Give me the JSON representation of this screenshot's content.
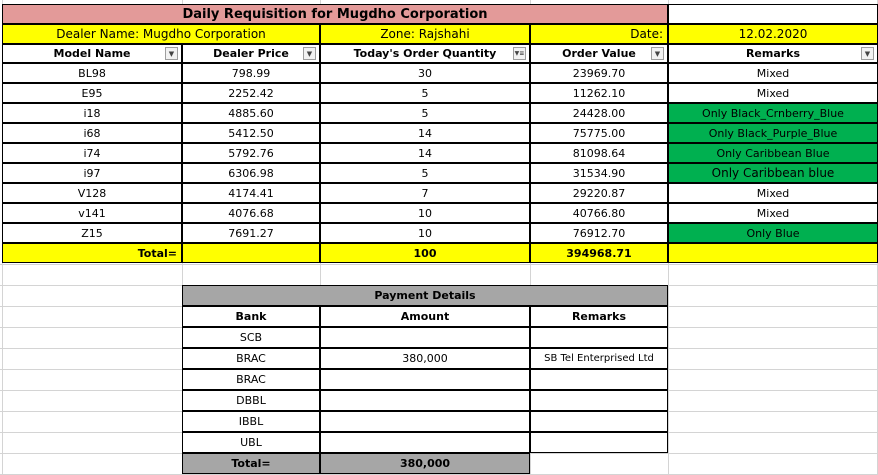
{
  "sheet": {
    "title": "Daily Requisition for Mugdho Corporation",
    "dealer_label": "Dealer Name:  Mugdho Corporation",
    "zone_label": "Zone: Rajshahi",
    "date_label": "Date:",
    "date_value": "12.02.2020"
  },
  "columns": [
    "Model Name",
    "Dealer Price",
    "Today's Order Quantity",
    "Order Value",
    "Remarks"
  ],
  "filter_icons": [
    "dropdown-arrow-icon",
    "dropdown-arrow-icon",
    "filter-applied-icon",
    "dropdown-arrow-icon",
    "dropdown-arrow-icon"
  ],
  "rows": [
    {
      "model": "BL98",
      "price": "798.99",
      "qty": "30",
      "value": "23969.70",
      "remarks": "Mixed",
      "highlight": false
    },
    {
      "model": "E95",
      "price": "2252.42",
      "qty": "5",
      "value": "11262.10",
      "remarks": "Mixed",
      "highlight": false
    },
    {
      "model": "i18",
      "price": "4885.60",
      "qty": "5",
      "value": "24428.00",
      "remarks": "Only Black_Crnberry_Blue",
      "highlight": true
    },
    {
      "model": "i68",
      "price": "5412.50",
      "qty": "14",
      "value": "75775.00",
      "remarks": "Only Black_Purple_Blue",
      "highlight": true
    },
    {
      "model": "i74",
      "price": "5792.76",
      "qty": "14",
      "value": "81098.64",
      "remarks": "Only Caribbean Blue",
      "highlight": true
    },
    {
      "model": "i97",
      "price": "6306.98",
      "qty": "5",
      "value": "31534.90",
      "remarks": "Only Caribbean blue",
      "highlight": true
    },
    {
      "model": "V128",
      "price": "4174.41",
      "qty": "7",
      "value": "29220.87",
      "remarks": "Mixed",
      "highlight": false
    },
    {
      "model": "v141",
      "price": "4076.68",
      "qty": "10",
      "value": "40766.80",
      "remarks": "Mixed",
      "highlight": false
    },
    {
      "model": "Z15",
      "price": "7691.27",
      "qty": "10",
      "value": "76912.70",
      "remarks": "Only Blue",
      "highlight": true
    }
  ],
  "totals": {
    "label": "Total=",
    "qty": "100",
    "value": "394968.71"
  },
  "payment": {
    "title": "Payment Details",
    "headers": [
      "Bank",
      "Amount",
      "Remarks"
    ],
    "rows": [
      {
        "bank": "SCB",
        "amount": "",
        "remarks": ""
      },
      {
        "bank": "BRAC",
        "amount": "380,000",
        "remarks": "SB Tel Enterprised Ltd"
      },
      {
        "bank": "BRAC",
        "amount": "",
        "remarks": ""
      },
      {
        "bank": "DBBL",
        "amount": "",
        "remarks": ""
      },
      {
        "bank": "IBBL",
        "amount": "",
        "remarks": ""
      },
      {
        "bank": "UBL",
        "amount": "",
        "remarks": ""
      }
    ],
    "total_label": "Total=",
    "total_amount": "380,000"
  },
  "colors": {
    "title_fill": "#e39a99",
    "yellow": "#ffff00",
    "green": "#00b050",
    "gray": "#a6a6a6"
  }
}
